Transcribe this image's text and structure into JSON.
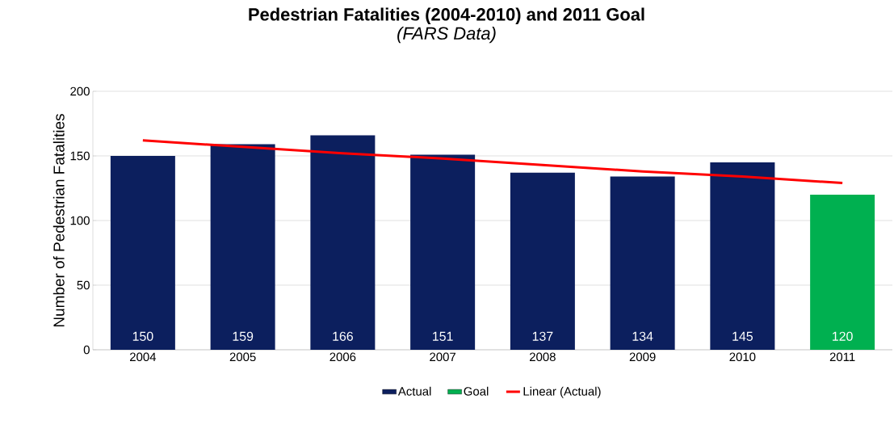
{
  "chart_data": {
    "type": "bar",
    "title": "Pedestrian Fatalities (2004-2010) and 2011 Goal",
    "subtitle": "(FARS Data)",
    "ylabel": "Number of Pedestrian Fatalities",
    "categories": [
      "2004",
      "2005",
      "2006",
      "2007",
      "2008",
      "2009",
      "2010",
      "2011"
    ],
    "series": [
      {
        "name": "Actual",
        "color": "#0c1f5e",
        "values": [
          150,
          159,
          166,
          151,
          137,
          134,
          145,
          null
        ],
        "value_labels": [
          "150",
          "159",
          "166",
          "151",
          "137",
          "134",
          "145",
          null
        ]
      },
      {
        "name": "Goal",
        "color": "#00b050",
        "values": [
          null,
          null,
          null,
          null,
          null,
          null,
          null,
          120
        ],
        "value_labels": [
          null,
          null,
          null,
          null,
          null,
          null,
          null,
          "120"
        ]
      },
      {
        "name": "Linear (Actual)",
        "type": "line",
        "color": "#ff0000",
        "values": [
          162,
          157,
          152,
          148,
          143,
          138,
          134,
          129
        ]
      }
    ],
    "ylim": [
      0,
      200
    ],
    "yticks": [
      0,
      50,
      100,
      150,
      200
    ],
    "grid": "y",
    "legend": "bottom",
    "marker": "none"
  }
}
